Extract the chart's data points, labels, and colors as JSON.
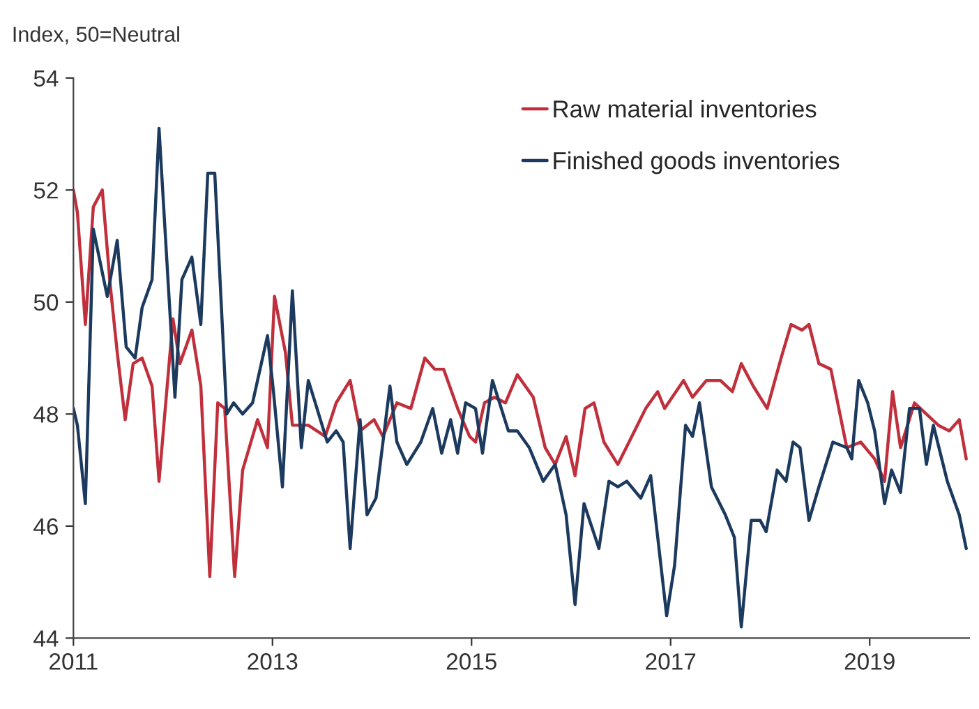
{
  "chart_data": {
    "type": "line",
    "ylabel": "Index, 50=Neutral",
    "xlim": [
      2011,
      2020
    ],
    "xticks": [
      2011,
      2013,
      2015,
      2017,
      2019
    ],
    "ylim": [
      44,
      54
    ],
    "yticks": [
      44,
      46,
      48,
      50,
      52,
      54
    ],
    "grid": false,
    "legend": "top right",
    "line_style": "solid",
    "series": [
      {
        "name": "Raw material inventories",
        "color": "#c0303c",
        "x": [
          2011.0,
          2011.04,
          2011.12,
          2011.2,
          2011.29,
          2011.37,
          2011.44,
          2011.52,
          2011.6,
          2011.69,
          2011.79,
          2011.86,
          2012.0,
          2012.07,
          2012.19,
          2012.28,
          2012.37,
          2012.45,
          2012.52,
          2012.62,
          2012.7,
          2012.85,
          2012.95,
          2013.02,
          2013.13,
          2013.2,
          2013.36,
          2013.53,
          2013.64,
          2013.78,
          2013.88,
          2014.02,
          2014.11,
          2014.25,
          2014.39,
          2014.53,
          2014.63,
          2014.72,
          2014.86,
          2014.98,
          2015.04,
          2015.13,
          2015.23,
          2015.34,
          2015.46,
          2015.62,
          2015.74,
          2015.84,
          2015.95,
          2016.04,
          2016.14,
          2016.23,
          2016.33,
          2016.47,
          2016.61,
          2016.75,
          2016.87,
          2016.94,
          2017.13,
          2017.22,
          2017.36,
          2017.5,
          2017.62,
          2017.71,
          2017.83,
          2017.97,
          2018.11,
          2018.21,
          2018.32,
          2018.39,
          2018.49,
          2018.61,
          2018.77,
          2018.91,
          2019.05,
          2019.15,
          2019.23,
          2019.31,
          2019.45,
          2019.57,
          2019.69,
          2019.8,
          2019.9,
          2019.97
        ],
        "values": [
          52.0,
          51.6,
          49.6,
          51.7,
          52.0,
          50.3,
          49.1,
          47.9,
          48.9,
          49.0,
          48.5,
          46.8,
          49.7,
          48.9,
          49.5,
          48.5,
          45.1,
          48.2,
          48.1,
          45.1,
          47.0,
          47.9,
          47.4,
          50.1,
          49.1,
          47.8,
          47.8,
          47.6,
          48.2,
          48.6,
          47.7,
          47.9,
          47.6,
          48.2,
          48.1,
          49.0,
          48.8,
          48.8,
          48.1,
          47.6,
          47.5,
          48.2,
          48.3,
          48.2,
          48.7,
          48.3,
          47.4,
          47.1,
          47.6,
          46.9,
          48.1,
          48.2,
          47.5,
          47.1,
          47.6,
          48.1,
          48.4,
          48.1,
          48.6,
          48.3,
          48.6,
          48.6,
          48.4,
          48.9,
          48.5,
          48.1,
          49.0,
          49.6,
          49.5,
          49.6,
          48.9,
          48.8,
          47.4,
          47.5,
          47.2,
          46.8,
          48.4,
          47.4,
          48.2,
          48.0,
          47.8,
          47.7,
          47.9,
          47.2
        ]
      },
      {
        "name": "Finished goods inventories",
        "color": "#1c3a5e",
        "x": [
          2011.0,
          2011.04,
          2011.12,
          2011.2,
          2011.34,
          2011.44,
          2011.53,
          2011.62,
          2011.69,
          2011.79,
          2011.86,
          2012.02,
          2012.09,
          2012.19,
          2012.28,
          2012.35,
          2012.42,
          2012.54,
          2012.61,
          2012.7,
          2012.8,
          2012.95,
          2013.01,
          2013.1,
          2013.2,
          2013.29,
          2013.36,
          2013.43,
          2013.55,
          2013.64,
          2013.71,
          2013.78,
          2013.88,
          2013.95,
          2014.04,
          2014.18,
          2014.25,
          2014.35,
          2014.49,
          2014.61,
          2014.7,
          2014.79,
          2014.86,
          2014.94,
          2015.04,
          2015.11,
          2015.21,
          2015.37,
          2015.46,
          2015.58,
          2015.72,
          2015.84,
          2015.95,
          2016.04,
          2016.13,
          2016.28,
          2016.38,
          2016.47,
          2016.56,
          2016.7,
          2016.8,
          2016.96,
          2017.04,
          2017.15,
          2017.22,
          2017.29,
          2017.41,
          2017.55,
          2017.64,
          2017.71,
          2017.81,
          2017.9,
          2017.96,
          2018.07,
          2018.16,
          2018.23,
          2018.3,
          2018.39,
          2018.49,
          2018.63,
          2018.77,
          2018.82,
          2018.89,
          2018.98,
          2019.05,
          2019.15,
          2019.22,
          2019.31,
          2019.4,
          2019.5,
          2019.57,
          2019.64,
          2019.78,
          2019.9,
          2019.97
        ],
        "values": [
          48.1,
          47.8,
          46.4,
          51.3,
          50.1,
          51.1,
          49.2,
          49.0,
          49.9,
          50.4,
          53.1,
          48.3,
          50.4,
          50.8,
          49.6,
          52.3,
          52.3,
          48.0,
          48.2,
          48.0,
          48.2,
          49.4,
          48.4,
          46.7,
          50.2,
          47.4,
          48.6,
          48.2,
          47.5,
          47.7,
          47.5,
          45.6,
          47.9,
          46.2,
          46.5,
          48.5,
          47.5,
          47.1,
          47.5,
          48.1,
          47.3,
          47.9,
          47.3,
          48.2,
          48.1,
          47.3,
          48.6,
          47.7,
          47.7,
          47.4,
          46.8,
          47.1,
          46.2,
          44.6,
          46.4,
          45.6,
          46.8,
          46.7,
          46.8,
          46.5,
          46.9,
          44.4,
          45.3,
          47.8,
          47.6,
          48.2,
          46.7,
          46.2,
          45.8,
          44.2,
          46.1,
          46.1,
          45.9,
          47.0,
          46.8,
          47.5,
          47.4,
          46.1,
          46.7,
          47.5,
          47.4,
          47.2,
          48.6,
          48.2,
          47.7,
          46.4,
          47.0,
          46.6,
          48.1,
          48.1,
          47.1,
          47.8,
          46.8,
          46.2,
          45.6
        ]
      }
    ]
  }
}
